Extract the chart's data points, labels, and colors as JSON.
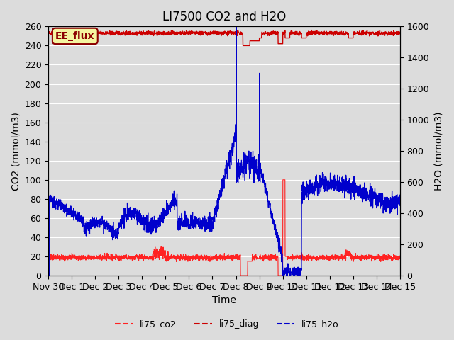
{
  "title": "LI7500 CO2 and H2O",
  "xlabel": "Time",
  "ylabel_left": "CO2 (mmol/m3)",
  "ylabel_right": "H2O (mmol/m3)",
  "ylim_left": [
    0,
    260
  ],
  "ylim_right": [
    0,
    1600
  ],
  "yticks_left": [
    0,
    20,
    40,
    60,
    80,
    100,
    120,
    140,
    160,
    180,
    200,
    220,
    240,
    260
  ],
  "yticks_right": [
    0,
    200,
    400,
    600,
    800,
    1000,
    1200,
    1400,
    1600
  ],
  "plot_bg_color": "#dcdcdc",
  "grid_color": "#ffffff",
  "annotation_text": "EE_flux",
  "annotation_color": "#8b0000",
  "annotation_bg": "#f5f5a0",
  "legend_entries": [
    "li75_co2",
    "li75_diag",
    "li75_h2o"
  ],
  "co2_color": "#ff2222",
  "diag_color": "#cc0000",
  "h2o_color": "#0000cc",
  "title_fontsize": 12,
  "axis_fontsize": 10,
  "tick_fontsize": 9
}
